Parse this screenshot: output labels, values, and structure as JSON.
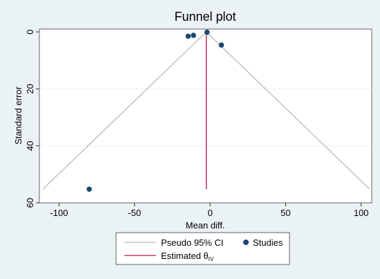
{
  "chart_data": {
    "type": "scatter",
    "title": "Funnel plot",
    "xlabel": "Mean diff.",
    "ylabel": "Standard error",
    "xlim": [
      -113,
      107
    ],
    "ylim": [
      -1,
      60
    ],
    "y_reversed": true,
    "x_ticks": [
      -100,
      -50,
      0,
      50,
      100
    ],
    "y_ticks": [
      0,
      20,
      40,
      60
    ],
    "gridlines": "horizontal",
    "legend_position": "bottom",
    "estimate": -2.5,
    "pseudo_ci_se_max": 55.2,
    "studies": [
      {
        "x": -80,
        "y": 55.2
      },
      {
        "x": -14.5,
        "y": 1.5
      },
      {
        "x": -11,
        "y": 1.2
      },
      {
        "x": -2,
        "y": 0.1
      },
      {
        "x": 7.5,
        "y": 4.6
      }
    ],
    "colors": {
      "ci": "#a7a7a7",
      "estimate": "#c1103a",
      "studies": "#1a476f",
      "plot_bg": "#ffffff",
      "outer_bg": "#eaf2f3",
      "grid": "#eaf2f3"
    },
    "legend": {
      "ci_label": "Pseudo 95% CI",
      "studies_label": "Studies",
      "estimate_label": "Estimated θ",
      "estimate_subscript": "IV"
    }
  }
}
